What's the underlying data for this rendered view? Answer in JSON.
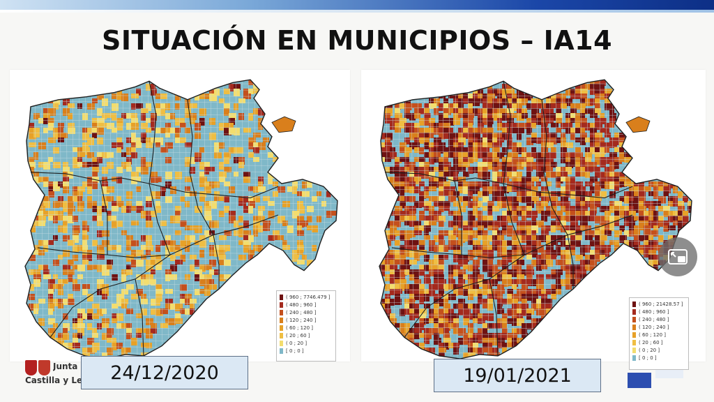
{
  "header": {
    "title": "SITUACIÓN EN MUNICIPIOS – IA14"
  },
  "colors": {
    "c0": "#7fb8c8",
    "c1": "#f3dd6e",
    "c2": "#efbe43",
    "c3": "#e7a128",
    "c4": "#d97f1c",
    "c5": "#c4501d",
    "c6": "#a42a1e",
    "c7": "#6e1212",
    "border": "#1e1e1e"
  },
  "maps": [
    {
      "date": "24/12/2020",
      "legend": [
        "( 960 ; 7746.479 ]",
        "( 480 ; 960 ]",
        "( 240 ; 480 ]",
        "( 120 ; 240 ]",
        "( 60 ; 120 ]",
        "( 20 ; 60 ]",
        "( 0 ; 20 ]",
        "[ 0 ; 0 ]"
      ],
      "weights": [
        0.66,
        0.07,
        0.07,
        0.06,
        0.05,
        0.04,
        0.03,
        0.02
      ]
    },
    {
      "date": "19/01/2021",
      "legend": [
        "( 960 ; 21428.57 ]",
        "( 480 ; 960 ]",
        "( 240 ; 480 ]",
        "( 120 ; 240 ]",
        "( 60 ; 120 ]",
        "( 20 ; 60 ]",
        "( 0 ; 20 ]",
        "[ 0 ; 0 ]"
      ],
      "weights": [
        0.32,
        0.02,
        0.04,
        0.07,
        0.09,
        0.12,
        0.16,
        0.18
      ]
    }
  ],
  "logo": {
    "line1": "Junta de",
    "line2": "Castilla y León"
  }
}
